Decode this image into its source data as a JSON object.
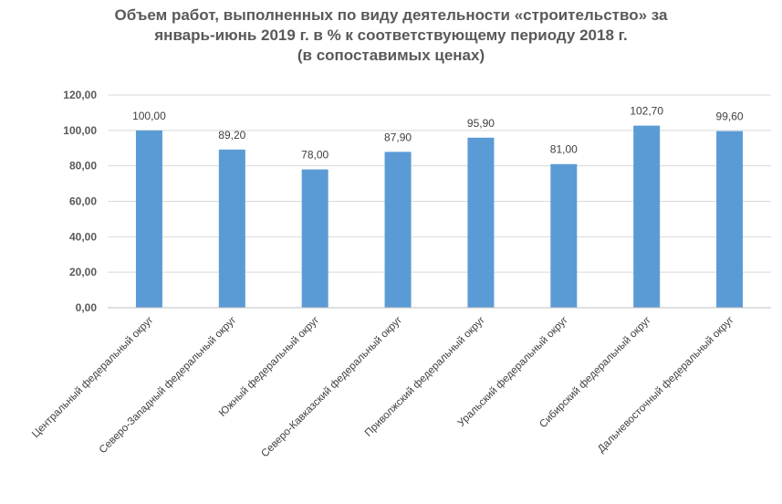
{
  "title_lines": [
    "Объем работ, выполненных по виду деятельности «строительство» за",
    "январь-июнь 2019 г. в % к соответствующему периоду 2018 г.",
    "(в сопоставимых ценах)"
  ],
  "chart_data": {
    "type": "bar",
    "title": "Объем работ, выполненных по виду деятельности «строительство» за январь-июнь 2019 г. в % к соответствующему периоду 2018 г. (в сопоставимых ценах)",
    "categories": [
      "Центральный федеральный округ",
      "Северо-Западный федеральный округ",
      "Южный федеральный округ",
      "Северо-Кавказский федеральный округ",
      "Приволжский федеральный округ",
      "Уральский федеральный округ",
      "Сибирский федеральный округ",
      "Дальневосточный федеральный округ"
    ],
    "values": [
      100.0,
      89.2,
      78.0,
      87.9,
      95.9,
      81.0,
      102.7,
      99.6
    ],
    "value_labels": [
      "100,00",
      "89,20",
      "78,00",
      "87,90",
      "95,90",
      "81,00",
      "102,70",
      "99,60"
    ],
    "ylim": [
      0,
      120
    ],
    "yticks": [
      "0,00",
      "20,00",
      "40,00",
      "60,00",
      "80,00",
      "100,00",
      "120,00"
    ],
    "grid": true,
    "bar_color": "#5b9bd5",
    "grid_color": "#d9d9d9",
    "xlabel": "",
    "ylabel": ""
  }
}
